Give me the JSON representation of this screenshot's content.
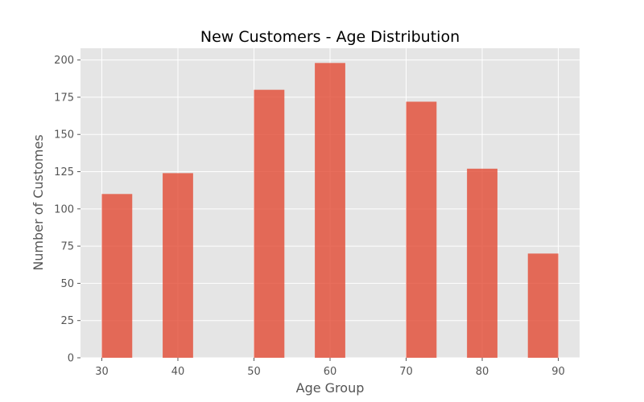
{
  "chart_data": {
    "type": "bar",
    "title": "New Customers - Age Distribution",
    "xlabel": "Age Group",
    "ylabel": "Number of Customes",
    "bins": [
      {
        "start": 30,
        "end": 34,
        "value": 110
      },
      {
        "start": 38,
        "end": 42,
        "value": 124
      },
      {
        "start": 50,
        "end": 54,
        "value": 180
      },
      {
        "start": 58,
        "end": 62,
        "value": 198
      },
      {
        "start": 70,
        "end": 74,
        "value": 172
      },
      {
        "start": 78,
        "end": 82,
        "value": 127
      },
      {
        "start": 86,
        "end": 90,
        "value": 70
      }
    ],
    "xticks": [
      30,
      40,
      50,
      60,
      70,
      80,
      90
    ],
    "yticks": [
      0,
      25,
      50,
      75,
      100,
      125,
      150,
      175,
      200
    ],
    "xlim": [
      27.2,
      92.8
    ],
    "ylim": [
      0,
      207.9
    ],
    "grid": true,
    "colors": {
      "bar": "#E24A33",
      "background": "#E5E5E5",
      "grid": "#FFFFFF"
    }
  }
}
